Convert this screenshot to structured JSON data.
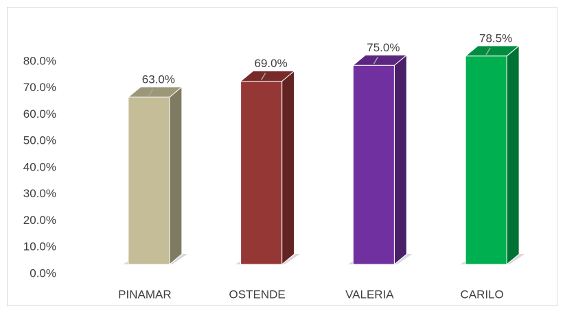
{
  "chart_data": {
    "type": "bar3d",
    "categories": [
      "PINAMAR",
      "OSTENDE",
      "VALERIA",
      "CARILO"
    ],
    "values": [
      63,
      69,
      75,
      78.5
    ],
    "value_labels": [
      "63.0%",
      "69.0%",
      "75.0%",
      "78.5%"
    ],
    "colors": [
      "#c4bd97",
      "#953735",
      "#7030a0",
      "#00b050"
    ],
    "ylim": [
      0,
      80
    ],
    "yticks": [
      {
        "value": 0,
        "label": "0.0%"
      },
      {
        "value": 10,
        "label": "10.0%"
      },
      {
        "value": 20,
        "label": "20.0%"
      },
      {
        "value": 30,
        "label": "30.0%"
      },
      {
        "value": 40,
        "label": "40.0%"
      },
      {
        "value": 50,
        "label": "50.0%"
      },
      {
        "value": 60,
        "label": "60.0%"
      },
      {
        "value": 70,
        "label": "70.0%"
      },
      {
        "value": 80,
        "label": "80.0%"
      }
    ],
    "grid": false
  }
}
